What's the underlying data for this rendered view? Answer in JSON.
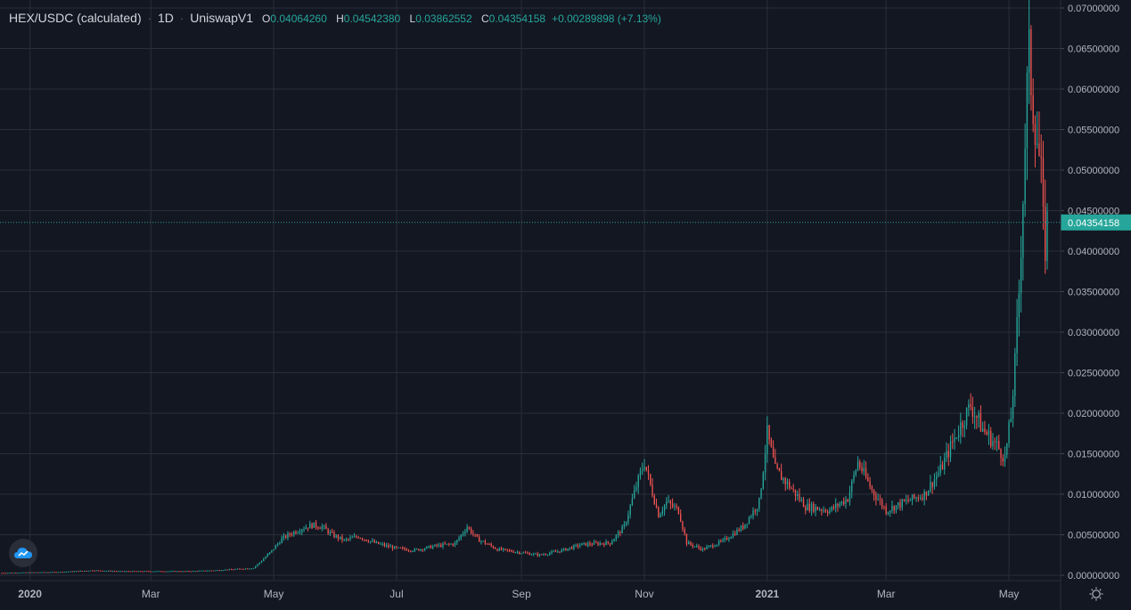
{
  "header": {
    "symbol": "HEX/USDC (calculated)",
    "interval": "1D",
    "exchange": "UniswapV1",
    "ohlc": {
      "open_label": "O",
      "open": "0.04064260",
      "high_label": "H",
      "high": "0.04542380",
      "low_label": "L",
      "low": "0.03862552",
      "close_label": "C",
      "close": "0.04354158"
    },
    "change": "+0.00289898 (+7.13%)"
  },
  "colors": {
    "background": "#131722",
    "grid": "#2a2e39",
    "up": "#26a69a",
    "down": "#ef5350",
    "axis_text": "#b2b5be",
    "price_line": "#26a69a"
  },
  "icons": {
    "logo": "tradingview-cloud-icon",
    "settings": "gear-icon"
  },
  "chart_data": {
    "type": "candlestick",
    "interval": "1D",
    "x_range": [
      "2019-12-18",
      "2021-05-20"
    ],
    "ylim": [
      0,
      0.07
    ],
    "y_ticks": [
      "0.07000000",
      "0.06500000",
      "0.06000000",
      "0.05500000",
      "0.05000000",
      "0.04500000",
      "0.04000000",
      "0.03500000",
      "0.03000000",
      "0.02500000",
      "0.02000000",
      "0.01500000",
      "0.01000000",
      "0.00500000",
      "0.00000000"
    ],
    "y_tick_values": [
      0.07,
      0.065,
      0.06,
      0.055,
      0.05,
      0.045,
      0.04,
      0.035,
      0.03,
      0.025,
      0.02,
      0.015,
      0.01,
      0.005,
      0.0
    ],
    "x_ticks": [
      {
        "label": "2020",
        "date": "2020-01-01"
      },
      {
        "label": "Mar",
        "date": "2020-03-01"
      },
      {
        "label": "May",
        "date": "2020-05-01"
      },
      {
        "label": "Jul",
        "date": "2020-07-01"
      },
      {
        "label": "Sep",
        "date": "2020-09-01"
      },
      {
        "label": "Nov",
        "date": "2020-11-01"
      },
      {
        "label": "2021",
        "date": "2021-01-01"
      },
      {
        "label": "Mar",
        "date": "2021-03-01"
      },
      {
        "label": "May",
        "date": "2021-05-01"
      }
    ],
    "last_price": 0.04354158,
    "last_price_label": "0.04354158",
    "close_series": [
      {
        "date": "2019-12-18",
        "close": 0.0003
      },
      {
        "date": "2020-01-15",
        "close": 0.0004
      },
      {
        "date": "2020-02-01",
        "close": 0.0006
      },
      {
        "date": "2020-02-15",
        "close": 0.0005
      },
      {
        "date": "2020-03-01",
        "close": 0.0005
      },
      {
        "date": "2020-03-20",
        "close": 0.0005
      },
      {
        "date": "2020-04-01",
        "close": 0.0006
      },
      {
        "date": "2020-04-15",
        "close": 0.0008
      },
      {
        "date": "2020-04-21",
        "close": 0.0009
      },
      {
        "date": "2020-04-25",
        "close": 0.0018
      },
      {
        "date": "2020-04-30",
        "close": 0.003
      },
      {
        "date": "2020-05-05",
        "close": 0.0045
      },
      {
        "date": "2020-05-10",
        "close": 0.0052
      },
      {
        "date": "2020-05-15",
        "close": 0.0058
      },
      {
        "date": "2020-05-20",
        "close": 0.0062
      },
      {
        "date": "2020-05-25",
        "close": 0.006
      },
      {
        "date": "2020-05-30",
        "close": 0.005
      },
      {
        "date": "2020-06-05",
        "close": 0.0043
      },
      {
        "date": "2020-06-12",
        "close": 0.0048
      },
      {
        "date": "2020-06-20",
        "close": 0.004
      },
      {
        "date": "2020-07-01",
        "close": 0.0033
      },
      {
        "date": "2020-07-10",
        "close": 0.0031
      },
      {
        "date": "2020-07-20",
        "close": 0.0036
      },
      {
        "date": "2020-07-30",
        "close": 0.0039
      },
      {
        "date": "2020-08-05",
        "close": 0.006
      },
      {
        "date": "2020-08-10",
        "close": 0.0045
      },
      {
        "date": "2020-08-20",
        "close": 0.0032
      },
      {
        "date": "2020-09-01",
        "close": 0.0028
      },
      {
        "date": "2020-09-10",
        "close": 0.0025
      },
      {
        "date": "2020-09-20",
        "close": 0.003
      },
      {
        "date": "2020-10-01",
        "close": 0.0038
      },
      {
        "date": "2020-10-15",
        "close": 0.004
      },
      {
        "date": "2020-10-22",
        "close": 0.006
      },
      {
        "date": "2020-10-28",
        "close": 0.011
      },
      {
        "date": "2020-11-01",
        "close": 0.014
      },
      {
        "date": "2020-11-03",
        "close": 0.012
      },
      {
        "date": "2020-11-08",
        "close": 0.0075
      },
      {
        "date": "2020-11-12",
        "close": 0.009
      },
      {
        "date": "2020-11-18",
        "close": 0.008
      },
      {
        "date": "2020-11-22",
        "close": 0.004
      },
      {
        "date": "2020-11-30",
        "close": 0.0032
      },
      {
        "date": "2020-12-10",
        "close": 0.0042
      },
      {
        "date": "2020-12-20",
        "close": 0.006
      },
      {
        "date": "2020-12-28",
        "close": 0.009
      },
      {
        "date": "2021-01-01",
        "close": 0.0175
      },
      {
        "date": "2021-01-05",
        "close": 0.013
      },
      {
        "date": "2021-01-12",
        "close": 0.011
      },
      {
        "date": "2021-01-20",
        "close": 0.0085
      },
      {
        "date": "2021-02-01",
        "close": 0.008
      },
      {
        "date": "2021-02-10",
        "close": 0.0095
      },
      {
        "date": "2021-02-15",
        "close": 0.014
      },
      {
        "date": "2021-02-22",
        "close": 0.0105
      },
      {
        "date": "2021-03-01",
        "close": 0.008
      },
      {
        "date": "2021-03-10",
        "close": 0.009
      },
      {
        "date": "2021-03-20",
        "close": 0.01
      },
      {
        "date": "2021-03-28",
        "close": 0.013
      },
      {
        "date": "2021-04-05",
        "close": 0.0175
      },
      {
        "date": "2021-04-12",
        "close": 0.021
      },
      {
        "date": "2021-04-18",
        "close": 0.018
      },
      {
        "date": "2021-04-25",
        "close": 0.016
      },
      {
        "date": "2021-04-29",
        "close": 0.0145
      },
      {
        "date": "2021-05-02",
        "close": 0.0195
      },
      {
        "date": "2021-05-04",
        "close": 0.026
      },
      {
        "date": "2021-05-06",
        "close": 0.035
      },
      {
        "date": "2021-05-08",
        "close": 0.047
      },
      {
        "date": "2021-05-10",
        "close": 0.06
      },
      {
        "date": "2021-05-11",
        "close": 0.064
      },
      {
        "date": "2021-05-13",
        "close": 0.058
      },
      {
        "date": "2021-05-15",
        "close": 0.054
      },
      {
        "date": "2021-05-17",
        "close": 0.049
      },
      {
        "date": "2021-05-18",
        "close": 0.043
      },
      {
        "date": "2021-05-19",
        "close": 0.0406
      },
      {
        "date": "2021-05-20",
        "close": 0.0435
      }
    ]
  }
}
